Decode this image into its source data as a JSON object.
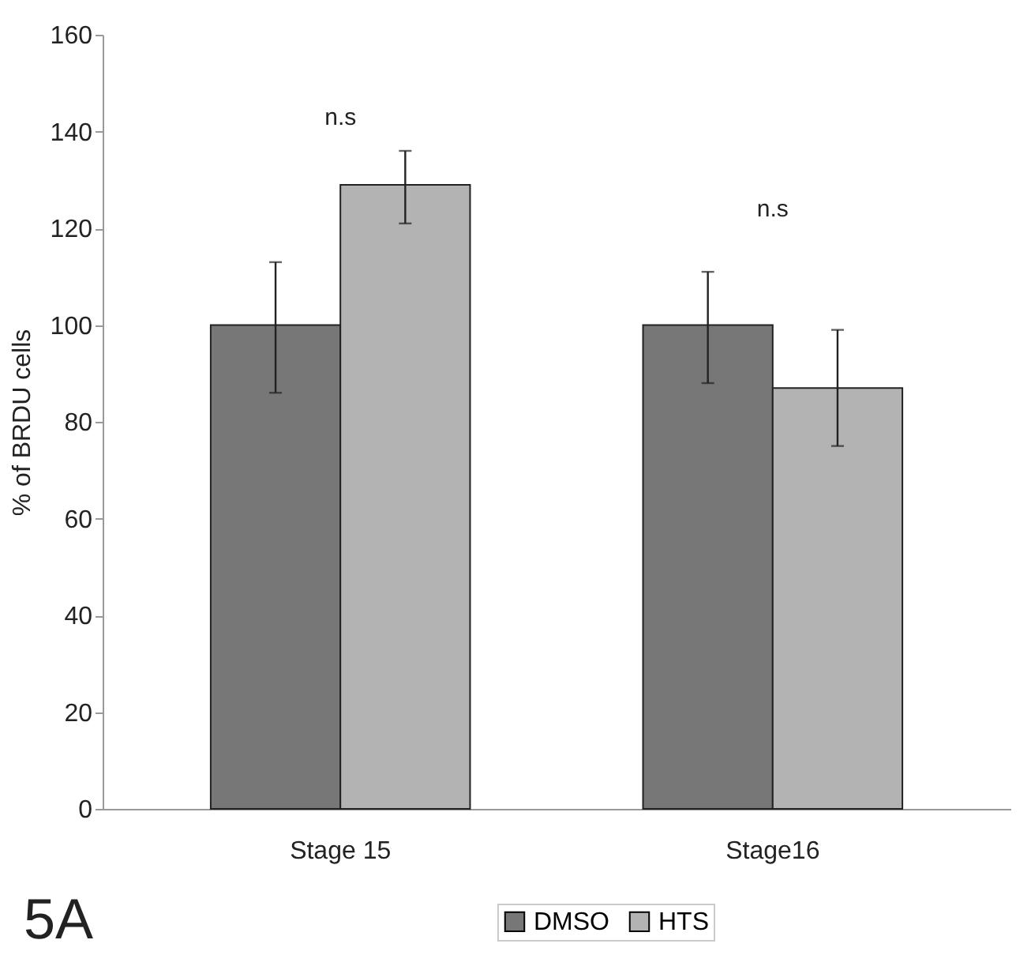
{
  "chart_data": {
    "type": "bar",
    "ylabel": "% of BRDU cells",
    "categories": [
      "Stage 15",
      "Stage16"
    ],
    "series": [
      {
        "name": "DMSO",
        "color": "#777777",
        "values": [
          100,
          100
        ],
        "errors": [
          [
            86,
            113
          ],
          [
            88,
            111
          ]
        ]
      },
      {
        "name": "HTS",
        "color": "#b3b3b3",
        "values": [
          129,
          87
        ],
        "errors": [
          [
            121,
            136
          ],
          [
            75,
            99
          ]
        ]
      }
    ],
    "ylim": [
      0,
      160
    ],
    "yticks": [
      0,
      20,
      40,
      60,
      80,
      100,
      120,
      140,
      160
    ],
    "grid": false,
    "legend": "bottom",
    "annotations": [
      "n.s",
      "n.s",
      "5A"
    ]
  }
}
